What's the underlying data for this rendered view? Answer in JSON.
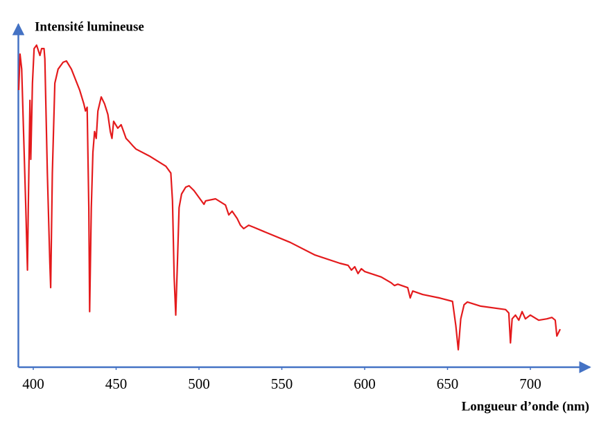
{
  "chart_data": {
    "type": "line",
    "ylabel": "Intensité lumineuse",
    "xlabel": "Longueur d’onde (nm)",
    "x": [
      391.2,
      392,
      393,
      395.5,
      396.5,
      397,
      398,
      398.5,
      399.5,
      400.5,
      402,
      404,
      405,
      406.5,
      407,
      408.5,
      410,
      410.5,
      411.5,
      413,
      415,
      418,
      420,
      423,
      428,
      430.5,
      431.5,
      432.5,
      433.5,
      434,
      435,
      436,
      437,
      438,
      439,
      441,
      443,
      445,
      446.5,
      447.5,
      448.5,
      451,
      453,
      454.5,
      456,
      458,
      460,
      462,
      470,
      480,
      483,
      484,
      485,
      486,
      487,
      488,
      489.5,
      492,
      494,
      497,
      500,
      503,
      504,
      510,
      516,
      518,
      520,
      523,
      525,
      527,
      530,
      533,
      540,
      555,
      570,
      585,
      590,
      592,
      594,
      596,
      598,
      600,
      610,
      616,
      618,
      620,
      626,
      627.5,
      629,
      635,
      645,
      653,
      655,
      656.5,
      658,
      660,
      662,
      670,
      685,
      687,
      688,
      689,
      691,
      693,
      695,
      697,
      700,
      705,
      710,
      713,
      715,
      716,
      718
    ],
    "series": [
      {
        "name": "Intensité lumineuse",
        "color": "#e41a1c",
        "values": [
          80.8,
          91.3,
          86.9,
          46.5,
          28.3,
          46.5,
          77.8,
          60.6,
          82.8,
          92.9,
          93.9,
          90.9,
          92.9,
          92.9,
          89.9,
          56.6,
          30.3,
          23.2,
          56.6,
          82.8,
          86.9,
          88.9,
          89.3,
          86.9,
          80.8,
          76.8,
          74.7,
          75.8,
          46.5,
          16.2,
          46.5,
          62.6,
          68.7,
          66.7,
          74.7,
          78.8,
          76.8,
          73.7,
          68.7,
          66.7,
          71.7,
          69.7,
          70.7,
          68.7,
          66.7,
          65.7,
          64.6,
          63.6,
          61.6,
          58.6,
          56.6,
          48.5,
          26.3,
          15.2,
          30.3,
          46.5,
          50.5,
          52.5,
          52.9,
          51.5,
          49.5,
          47.5,
          48.5,
          49.1,
          47.3,
          44.4,
          45.5,
          43.4,
          41.4,
          40.4,
          41.4,
          40.8,
          39.4,
          36.4,
          32.7,
          30.3,
          29.7,
          28.3,
          29.3,
          27.3,
          28.7,
          27.9,
          26.3,
          24.6,
          23.8,
          24.2,
          23.2,
          20.2,
          22.2,
          21.2,
          20.2,
          19.2,
          12.1,
          5.1,
          14.1,
          18.2,
          19.0,
          17.8,
          16.8,
          15.8,
          7.1,
          14.1,
          15.2,
          13.7,
          16.2,
          14.1,
          15.2,
          13.7,
          14.1,
          14.5,
          13.7,
          9.1,
          11.1
        ]
      }
    ],
    "xlim": [
      391,
      736
    ],
    "xticks": [
      400,
      450,
      500,
      550,
      600,
      650,
      700
    ],
    "ylim": [
      0,
      100
    ],
    "axis_color": "#4472c4",
    "grid": false
  }
}
